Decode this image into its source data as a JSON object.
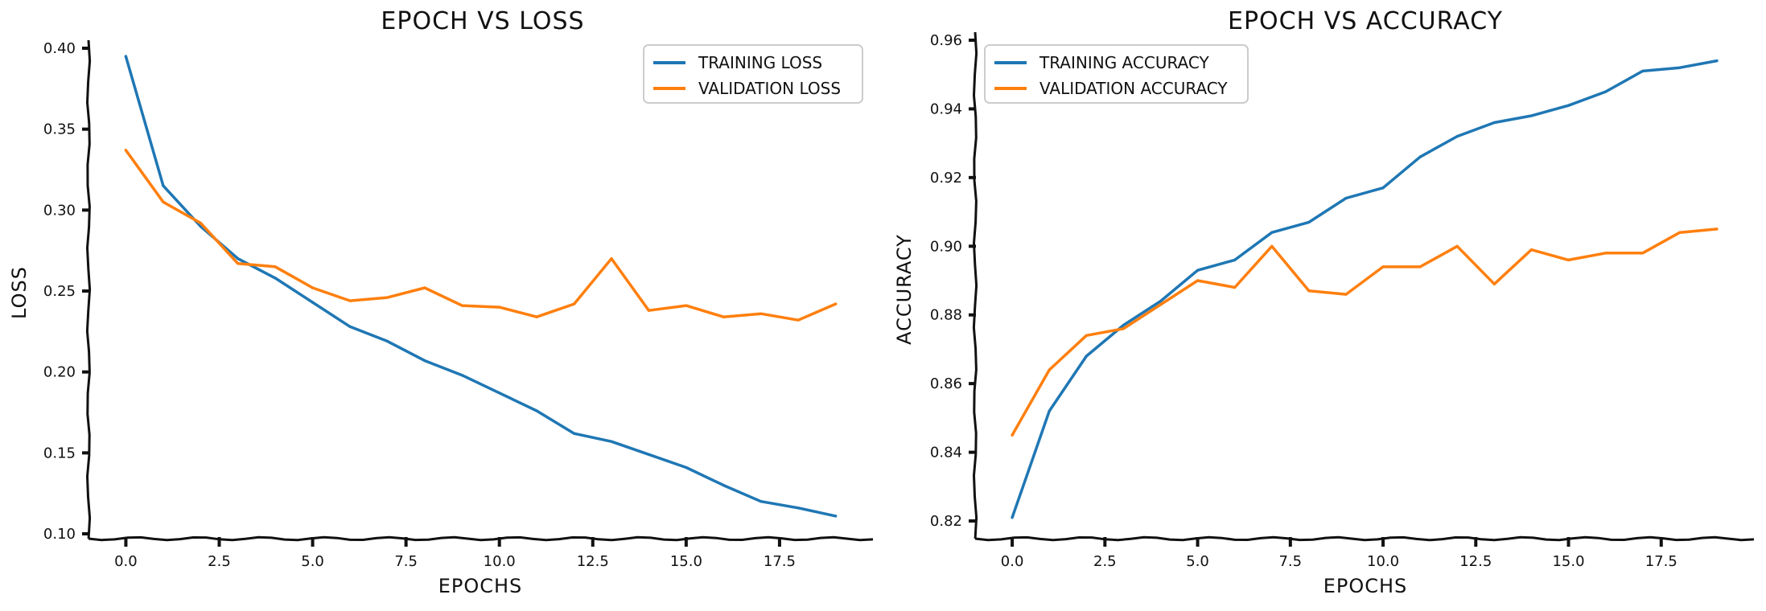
{
  "colors": {
    "series_1": "#1f77b4",
    "series_2": "#ff7f0e",
    "axis": "#111111"
  },
  "chart_data": [
    {
      "type": "line",
      "title": "EPOCH VS LOSS",
      "xlabel": "EPOCHS",
      "ylabel": "LOSS",
      "xlim": [
        -1,
        20
      ],
      "ylim": [
        0.1,
        0.4
      ],
      "xticks": [
        0.0,
        2.5,
        5.0,
        7.5,
        10.0,
        12.5,
        15.0,
        17.5
      ],
      "xtick_labels": [
        "0.0",
        "2.5",
        "5.0",
        "7.5",
        "10.0",
        "12.5",
        "15.0",
        "17.5"
      ],
      "yticks": [
        0.1,
        0.15,
        0.2,
        0.25,
        0.3,
        0.35,
        0.4
      ],
      "ytick_labels": [
        "0.10",
        "0.15",
        "0.20",
        "0.25",
        "0.30",
        "0.35",
        "0.40"
      ],
      "grid": false,
      "legend_position": "top-right",
      "x": [
        0,
        1,
        2,
        3,
        4,
        5,
        6,
        7,
        8,
        9,
        10,
        11,
        12,
        13,
        14,
        15,
        16,
        17,
        18,
        19
      ],
      "series": [
        {
          "name": "TRAINING LOSS",
          "color": "#1f77b4",
          "values": [
            0.395,
            0.315,
            0.29,
            0.27,
            0.258,
            0.243,
            0.228,
            0.219,
            0.207,
            0.198,
            0.187,
            0.176,
            0.162,
            0.157,
            0.149,
            0.141,
            0.13,
            0.12,
            0.116,
            0.111
          ]
        },
        {
          "name": "VALIDATION LOSS",
          "color": "#ff7f0e",
          "values": [
            0.337,
            0.305,
            0.292,
            0.267,
            0.265,
            0.252,
            0.244,
            0.246,
            0.252,
            0.241,
            0.24,
            0.234,
            0.242,
            0.27,
            0.238,
            0.241,
            0.234,
            0.236,
            0.232,
            0.242
          ]
        }
      ]
    },
    {
      "type": "line",
      "title": "EPOCH VS ACCURACY",
      "xlabel": "EPOCHS",
      "ylabel": "ACCURACY",
      "xlim": [
        -1,
        20
      ],
      "ylim": [
        0.82,
        0.96
      ],
      "xticks": [
        0.0,
        2.5,
        5.0,
        7.5,
        10.0,
        12.5,
        15.0,
        17.5
      ],
      "xtick_labels": [
        "0.0",
        "2.5",
        "5.0",
        "7.5",
        "10.0",
        "12.5",
        "15.0",
        "17.5"
      ],
      "yticks": [
        0.82,
        0.84,
        0.86,
        0.88,
        0.9,
        0.92,
        0.94,
        0.96
      ],
      "ytick_labels": [
        "0.82",
        "0.84",
        "0.86",
        "0.88",
        "0.90",
        "0.92",
        "0.94",
        "0.96"
      ],
      "grid": false,
      "legend_position": "top-left",
      "x": [
        0,
        1,
        2,
        3,
        4,
        5,
        6,
        7,
        8,
        9,
        10,
        11,
        12,
        13,
        14,
        15,
        16,
        17,
        18,
        19
      ],
      "series": [
        {
          "name": "TRAINING ACCURACY",
          "color": "#1f77b4",
          "values": [
            0.821,
            0.852,
            0.868,
            0.877,
            0.884,
            0.893,
            0.896,
            0.904,
            0.907,
            0.914,
            0.917,
            0.926,
            0.932,
            0.936,
            0.938,
            0.941,
            0.945,
            0.951,
            0.952,
            0.954
          ]
        },
        {
          "name": "VALIDATION ACCURACY",
          "color": "#ff7f0e",
          "values": [
            0.845,
            0.864,
            0.874,
            0.876,
            0.883,
            0.89,
            0.888,
            0.9,
            0.887,
            0.886,
            0.894,
            0.894,
            0.9,
            0.889,
            0.899,
            0.896,
            0.898,
            0.898,
            0.904,
            0.905
          ]
        }
      ]
    }
  ]
}
